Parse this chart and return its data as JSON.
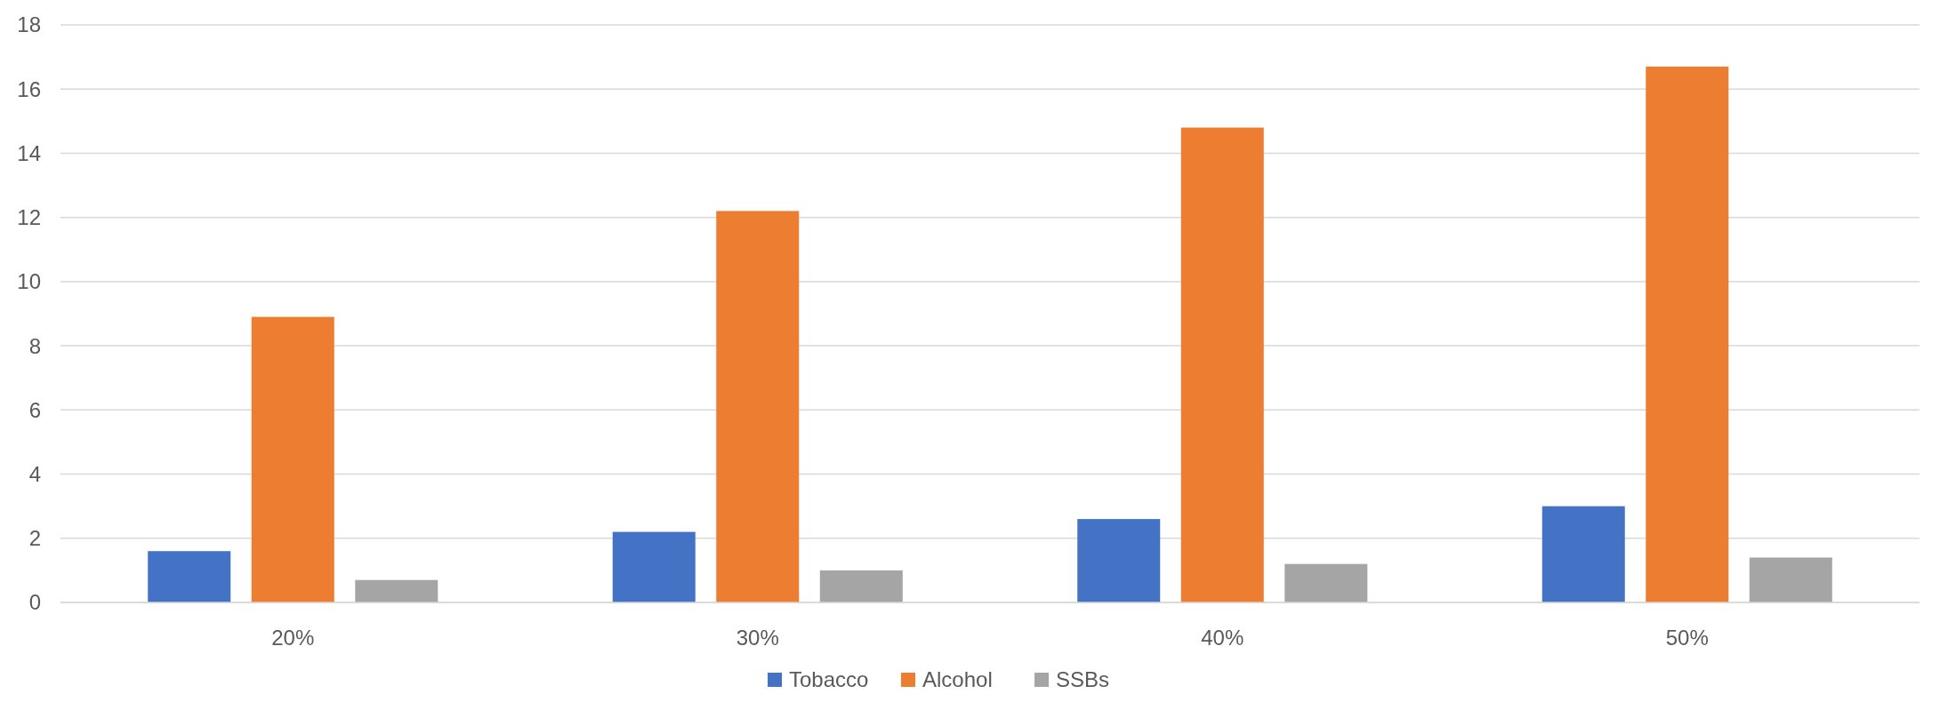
{
  "chart_data": {
    "type": "bar",
    "categories": [
      "20%",
      "30%",
      "40%",
      "50%"
    ],
    "series": [
      {
        "name": "Tobacco",
        "color": "#4472c4",
        "values": [
          1.6,
          2.2,
          2.6,
          3.0
        ]
      },
      {
        "name": "Alcohol",
        "color": "#ed7d31",
        "values": [
          8.9,
          12.2,
          14.8,
          16.7
        ]
      },
      {
        "name": "SSBs",
        "color": "#a5a5a5",
        "values": [
          0.7,
          1.0,
          1.2,
          1.4
        ]
      }
    ],
    "ylim": [
      0,
      18
    ],
    "yticks": [
      0,
      2,
      4,
      6,
      8,
      10,
      12,
      14,
      16,
      18
    ],
    "grid": "y",
    "legend": "bottom"
  }
}
